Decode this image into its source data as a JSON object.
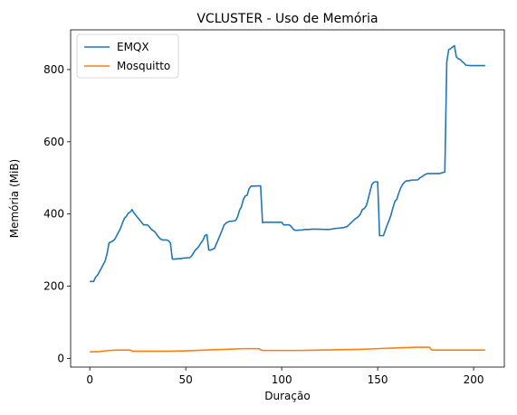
{
  "chart_data": {
    "type": "line",
    "title": "VCLUSTER - Uso de Memória",
    "xlabel": "Duração",
    "ylabel": "Memória (MiB)",
    "xlim": [
      -10,
      216
    ],
    "ylim": [
      -24,
      910
    ],
    "xticks": [
      0,
      50,
      100,
      150,
      200
    ],
    "yticks": [
      0,
      200,
      400,
      600,
      800
    ],
    "legend_position": "top-left",
    "grid": false,
    "series": [
      {
        "name": "EMQX",
        "color": "#1f77b4",
        "x": [
          0,
          2,
          3,
          4,
          5,
          6,
          7,
          8,
          9,
          10,
          12,
          13,
          14,
          15,
          16,
          17,
          18,
          19,
          20,
          21,
          22,
          23,
          28,
          29,
          30,
          31,
          32,
          34,
          35,
          36,
          37,
          38,
          40,
          41,
          42,
          43,
          44,
          48,
          49,
          52,
          53,
          54,
          55,
          56,
          57,
          58,
          59,
          60,
          61,
          62,
          63,
          65,
          66,
          67,
          68,
          69,
          70,
          71,
          72,
          73,
          74,
          75,
          76,
          77,
          78,
          79,
          80,
          81,
          82,
          83,
          84,
          88,
          89,
          90,
          91,
          92,
          96,
          100,
          101,
          104,
          105,
          106,
          107,
          108,
          111,
          112,
          114,
          116,
          118,
          124,
          126,
          128,
          130,
          132,
          134,
          136,
          138,
          140,
          141,
          142,
          143,
          144,
          145,
          146,
          147,
          148,
          149,
          150,
          151,
          152,
          153,
          154,
          155,
          156,
          157,
          158,
          159,
          160,
          161,
          162,
          163,
          164,
          165,
          166,
          167,
          168,
          170,
          171,
          172,
          173,
          174,
          175,
          176,
          177,
          178,
          179,
          180,
          181,
          182,
          183,
          184,
          185,
          186,
          187,
          188,
          189,
          190,
          191,
          192,
          193,
          194,
          195,
          196,
          198,
          200,
          202,
          204,
          206
        ],
        "values": [
          213,
          213,
          225,
          230,
          240,
          250,
          260,
          270,
          290,
          320,
          325,
          330,
          340,
          350,
          360,
          375,
          388,
          393,
          402,
          405,
          412,
          403,
          370,
          370,
          370,
          365,
          358,
          350,
          342,
          335,
          330,
          328,
          328,
          326,
          320,
          275,
          275,
          277,
          278,
          279,
          283,
          292,
          300,
          305,
          312,
          320,
          328,
          340,
          343,
          300,
          300,
          305,
          318,
          330,
          343,
          356,
          370,
          375,
          378,
          380,
          380,
          381,
          382,
          392,
          410,
          420,
          440,
          450,
          452,
          470,
          477,
          478,
          478,
          376,
          377,
          377,
          377,
          377,
          370,
          370,
          365,
          358,
          355,
          355,
          356,
          357,
          357,
          358,
          358,
          357,
          358,
          360,
          361,
          362,
          365,
          375,
          385,
          393,
          400,
          412,
          415,
          422,
          440,
          462,
          482,
          488,
          489,
          489,
          340,
          340,
          340,
          355,
          370,
          383,
          398,
          418,
          435,
          441,
          458,
          472,
          482,
          488,
          492,
          492,
          493,
          494,
          494,
          495,
          500,
          503,
          507,
          510,
          512,
          512,
          512,
          512,
          512,
          512,
          512,
          513,
          515,
          516,
          820,
          855,
          858,
          862,
          866,
          835,
          830,
          828,
          822,
          818,
          812,
          811,
          811,
          811,
          811,
          811
        ]
      },
      {
        "name": "Mosquitto",
        "color": "#ff7f0e",
        "x": [
          0,
          5,
          10,
          15,
          20,
          21,
          22,
          30,
          40,
          50,
          60,
          70,
          80,
          88,
          89,
          90,
          100,
          110,
          120,
          130,
          140,
          150,
          160,
          165,
          170,
          175,
          177,
          178,
          179,
          180,
          190,
          200,
          206
        ],
        "values": [
          18,
          19,
          22,
          23,
          23,
          23,
          20,
          20,
          20,
          21,
          23,
          25,
          27,
          27,
          24,
          22,
          22,
          22,
          23,
          24,
          25,
          27,
          29,
          30,
          31,
          31,
          31,
          24,
          23,
          23,
          23,
          23,
          23
        ]
      }
    ]
  }
}
